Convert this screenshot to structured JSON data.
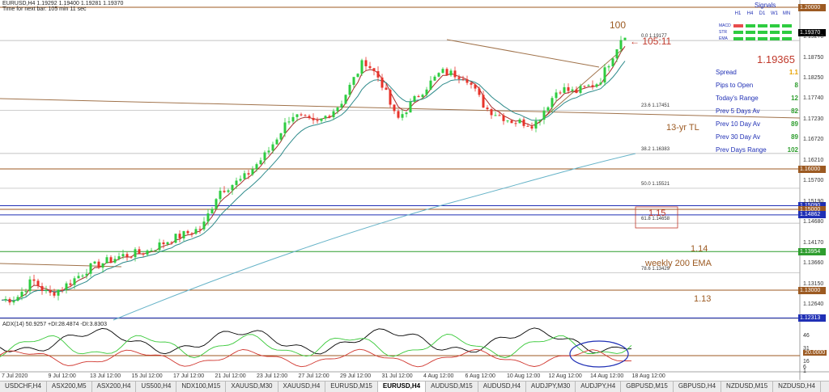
{
  "chart_header": {
    "line1": "EURUSD,H4  1.19292 1.19400 1.19281 1.19370",
    "line2": "Time for next bar: 105 min 11 sec"
  },
  "price_labels": [
    {
      "value": "1.20000",
      "color": "#9c5a22"
    },
    {
      "value": "1.19370",
      "color": "#000000"
    },
    {
      "value": "1.16000",
      "color": "#9c5a22"
    },
    {
      "value": "1.15090",
      "color": "#1f2fb5"
    },
    {
      "value": "1.15000",
      "color": "#9c5a22"
    },
    {
      "value": "1.14862",
      "color": "#1f2fb5"
    },
    {
      "value": "1.13954",
      "color": "#2e9d2e"
    },
    {
      "value": "1.13000",
      "color": "#9c5a22"
    },
    {
      "value": "1.12313",
      "color": "#1f2fb5"
    }
  ],
  "price_ticks": [
    "1.19270",
    "1.18750",
    "1.18250",
    "1.17740",
    "1.17230",
    "1.16720",
    "1.16210",
    "1.15700",
    "1.15190",
    "1.14680",
    "1.14170",
    "1.13660",
    "1.13150",
    "1.12640"
  ],
  "indicator_ticks": [
    "46",
    "31",
    "20.0000",
    "16",
    "6",
    "1"
  ],
  "x_ticks": [
    "7 Jul 2020",
    "9 Jul 12:00",
    "13 Jul 12:00",
    "15 Jul 12:00",
    "17 Jul 12:00",
    "21 Jul 12:00",
    "23 Jul 12:00",
    "27 Jul 12:00",
    "29 Jul 12:00",
    "31 Jul 12:00",
    "4 Aug 12:00",
    "6 Aug 12:00",
    "10 Aug 12:00",
    "12 Aug 12:00",
    "14 Aug 12:00",
    "18 Aug 12:00"
  ],
  "adx_header": "ADX(14) 50.9257 +DI:28.4874 -DI:3.8303",
  "annotations": {
    "hundred": "100",
    "countdown": "← 105:11",
    "tl": "13-yr TL",
    "l115": "1.15",
    "l114": "1.14",
    "l113": "1.13",
    "ema": "weekly 200 EMA"
  },
  "fib_levels": [
    {
      "label": "0.0  1.19177"
    },
    {
      "label": "23.6  1.17451"
    },
    {
      "label": "38.2  1.16383"
    },
    {
      "label": "50.0  1.15521"
    },
    {
      "label": "61.8  1.14658"
    },
    {
      "label": "78.6  1.13429"
    }
  ],
  "signals": {
    "title": "Signals",
    "timeframes": [
      "H1",
      "H4",
      "D1",
      "W1",
      "MN"
    ],
    "rows": [
      {
        "name": "MACD",
        "colors": [
          "#e84c4c",
          "#2ecc40",
          "#2ecc40",
          "#2ecc40",
          "#2ecc40"
        ]
      },
      {
        "name": "STR",
        "colors": [
          "#2ecc40",
          "#2ecc40",
          "#2ecc40",
          "#2ecc40",
          "#2ecc40"
        ]
      },
      {
        "name": "EMA",
        "colors": [
          "#2ecc40",
          "#2ecc40",
          "#2ecc40",
          "#2ecc40",
          "#2ecc40"
        ]
      }
    ]
  },
  "current_price": "1.19365",
  "stats": [
    {
      "label": "Spread",
      "value": "1.1",
      "value_color": "#e8a200"
    },
    {
      "label": "Pips to Open",
      "value": "8",
      "value_color": "#2e9d2e"
    },
    {
      "label": "Today's Range",
      "value": "12",
      "value_color": "#2e9d2e"
    },
    {
      "label": "Prev 5 Days Av",
      "value": "82",
      "value_color": "#2e9d2e"
    },
    {
      "label": "Prev 10 Day Av",
      "value": "89",
      "value_color": "#2e9d2e"
    },
    {
      "label": "Prev 30 Day Av",
      "value": "89",
      "value_color": "#2e9d2e"
    },
    {
      "label": "Prev Days Range",
      "value": "102",
      "value_color": "#2e9d2e"
    }
  ],
  "tabs": [
    "USDCHF,H4",
    "ASX200,M5",
    "ASX200,H4",
    "US500,H4",
    "NDX100,M15",
    "XAUUSD,M30",
    "XAUUSD,H4",
    "EURUSD,M15",
    "EURUSD,H4",
    "AUDUSD,M15",
    "AUDUSD,H4",
    "AUDJPY,M30",
    "AUDJPY,H4",
    "GBPUSD,M15",
    "GBPUSD,H4",
    "NZDUSD,M15",
    "NZDUSD,H4"
  ],
  "active_tab": "EURUSD,H4",
  "colors": {
    "bull": "#2ecc40",
    "bear": "#e8332a",
    "trendline": "#a0724a",
    "ema_fast": "#a52a2a",
    "ema_mid": "#2e8b8b",
    "ema_slow": "#66b3c8",
    "adx": "#000000",
    "plus_di": "#38c938",
    "minus_di": "#d0342c"
  }
}
